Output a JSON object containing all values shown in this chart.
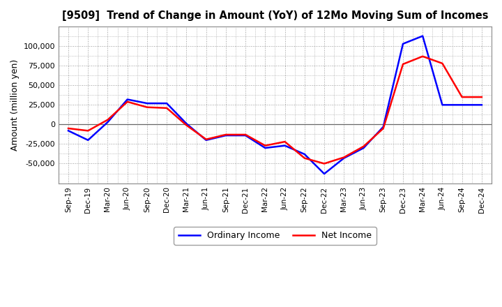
{
  "title": "[9509]  Trend of Change in Amount (YoY) of 12Mo Moving Sum of Incomes",
  "ylabel": "Amount (million yen)",
  "background_color": "#ffffff",
  "plot_bg_color": "#ffffff",
  "grid_color": "#999999",
  "x_labels": [
    "Sep-19",
    "Dec-19",
    "Mar-20",
    "Jun-20",
    "Sep-20",
    "Dec-20",
    "Mar-21",
    "Jun-21",
    "Sep-21",
    "Dec-21",
    "Mar-22",
    "Jun-22",
    "Sep-22",
    "Dec-22",
    "Mar-23",
    "Jun-23",
    "Sep-23",
    "Dec-23",
    "Mar-24",
    "Jun-24",
    "Sep-24",
    "Dec-24"
  ],
  "ordinary_income": [
    -8000,
    -20000,
    3000,
    32000,
    27000,
    27000,
    1000,
    -20000,
    -14000,
    -14000,
    -30000,
    -27000,
    -38000,
    -63000,
    -43000,
    -30000,
    -3000,
    103000,
    113000,
    25000,
    25000,
    25000
  ],
  "net_income": [
    -5000,
    -8000,
    6000,
    29000,
    22000,
    21000,
    -1000,
    -19000,
    -13000,
    -13000,
    -27000,
    -22000,
    -43000,
    -50000,
    -42000,
    -28000,
    -5000,
    77000,
    87000,
    78000,
    35000,
    35000
  ],
  "ordinary_color": "#0000ff",
  "net_color": "#ff0000",
  "ylim": [
    -75000,
    125000
  ],
  "yticks": [
    -50000,
    -25000,
    0,
    25000,
    50000,
    75000,
    100000
  ],
  "line_width": 1.8
}
